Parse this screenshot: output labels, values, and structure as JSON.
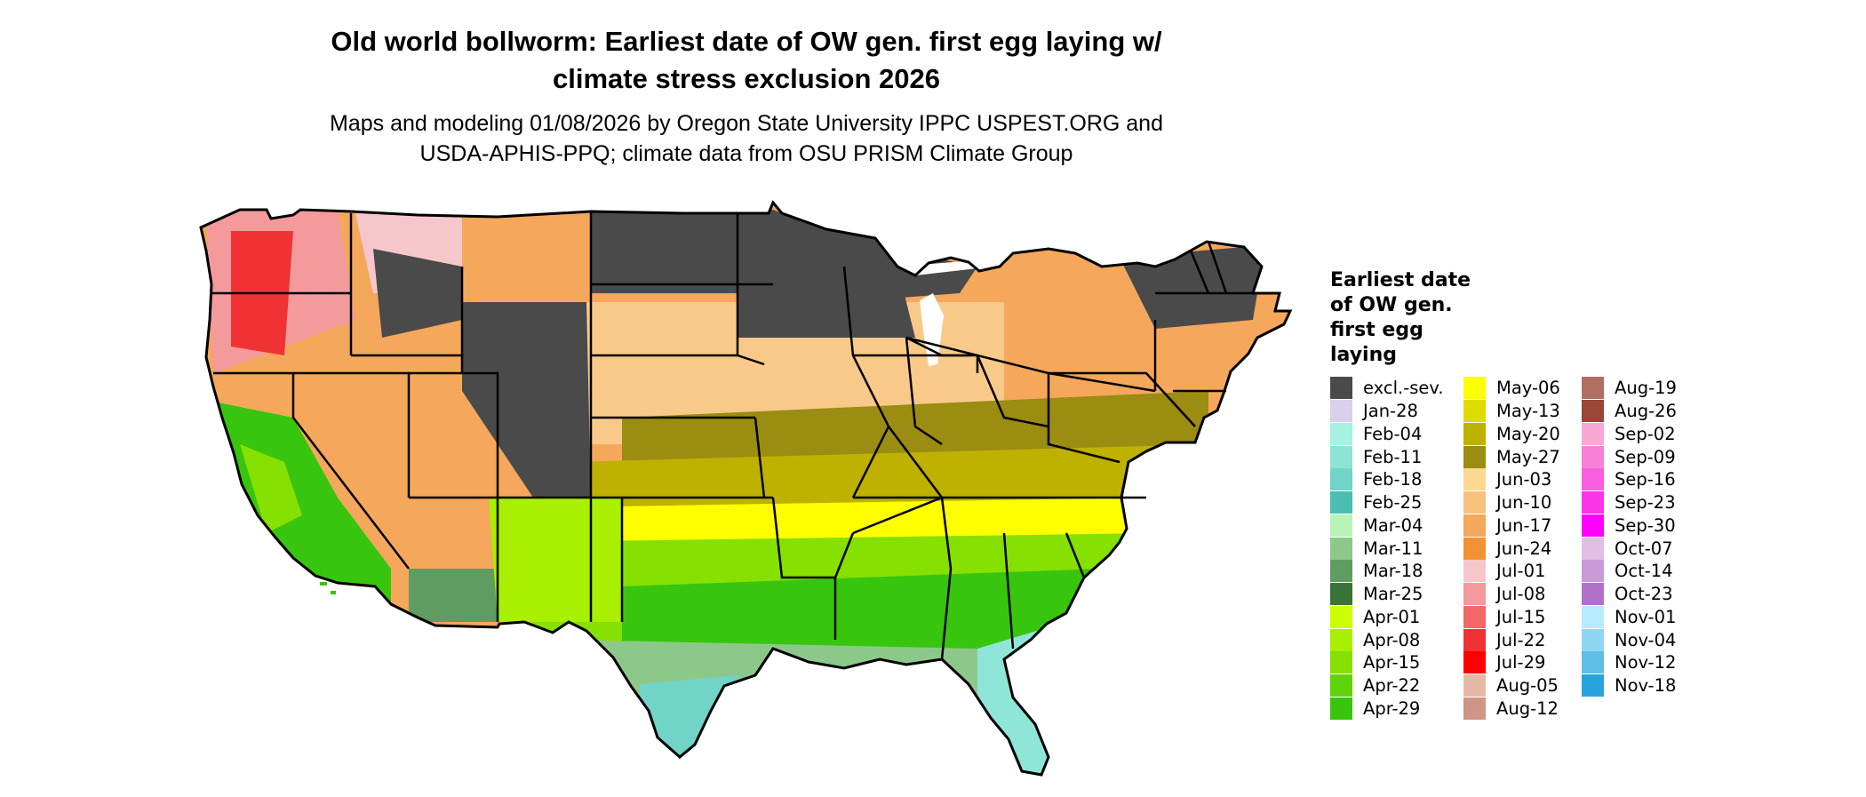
{
  "title": "Old world bollworm: Earliest date of OW gen. first egg laying w/ climate stress exclusion 2026",
  "title_lines": [
    "Old world bollworm: Earliest date of OW gen. first egg laying w/",
    "climate stress exclusion 2026"
  ],
  "subtitle_lines": [
    "Maps and modeling 01/08/2026 by Oregon State University IPPC USPEST.ORG and",
    "USDA-APHIS-PPQ; climate data from OSU PRISM Climate Group"
  ],
  "map": {
    "region": "Contiguous United States",
    "colors": {
      "excluded": "#4a4a4a",
      "border": "#000000",
      "feb_teal": "#8fe6d8",
      "mar_green": "#5a9c5a",
      "apr_green": "#7fd600",
      "may_yellow": "#ffff00",
      "may_olive": "#b5a800",
      "jun_peach": "#f9c98a",
      "jun_orange": "#f3a55a",
      "jul_red": "#f0363c",
      "jul_pink": "#f4a2a6"
    }
  },
  "legend": {
    "title_lines": [
      "Earliest date",
      "of OW gen.",
      "first egg",
      "laying"
    ],
    "columns": [
      [
        {
          "label": "excl.-sev.",
          "color": "#4a4a4a"
        },
        {
          "label": "Jan-28",
          "color": "#d8d0ec"
        },
        {
          "label": "Feb-04",
          "color": "#a6f2e3"
        },
        {
          "label": "Feb-11",
          "color": "#8ee3d4"
        },
        {
          "label": "Feb-18",
          "color": "#72d4c6"
        },
        {
          "label": "Feb-25",
          "color": "#4cbdb3"
        },
        {
          "label": "Mar-04",
          "color": "#b9f4b7"
        },
        {
          "label": "Mar-11",
          "color": "#8dc88b"
        },
        {
          "label": "Mar-18",
          "color": "#5e9c61"
        },
        {
          "label": "Mar-25",
          "color": "#3a7339"
        },
        {
          "label": "Apr-01",
          "color": "#ccff00"
        },
        {
          "label": "Apr-08",
          "color": "#a8f000"
        },
        {
          "label": "Apr-15",
          "color": "#86e000"
        },
        {
          "label": "Apr-22",
          "color": "#5fd40a"
        },
        {
          "label": "Apr-29",
          "color": "#38c50e"
        }
      ],
      [
        {
          "label": "May-06",
          "color": "#ffff00"
        },
        {
          "label": "May-13",
          "color": "#dedb00"
        },
        {
          "label": "May-20",
          "color": "#bfb100"
        },
        {
          "label": "May-27",
          "color": "#9b8c12"
        },
        {
          "label": "Jun-03",
          "color": "#fcd894"
        },
        {
          "label": "Jun-10",
          "color": "#f9c17e"
        },
        {
          "label": "Jun-17",
          "color": "#f5a75c"
        },
        {
          "label": "Jun-24",
          "color": "#f39235"
        },
        {
          "label": "Jul-01",
          "color": "#f6c7ca"
        },
        {
          "label": "Jul-08",
          "color": "#f49a9d"
        },
        {
          "label": "Jul-15",
          "color": "#f36769"
        },
        {
          "label": "Jul-22",
          "color": "#f13235"
        },
        {
          "label": "Jul-29",
          "color": "#ff0000"
        },
        {
          "label": "Aug-05",
          "color": "#e6b9a6"
        },
        {
          "label": "Aug-12",
          "color": "#cf9587"
        }
      ],
      [
        {
          "label": "Aug-19",
          "color": "#b36e62"
        },
        {
          "label": "Aug-26",
          "color": "#9a4535"
        },
        {
          "label": "Sep-02",
          "color": "#f9a7d3"
        },
        {
          "label": "Sep-09",
          "color": "#f881d8"
        },
        {
          "label": "Sep-16",
          "color": "#f95de0"
        },
        {
          "label": "Sep-23",
          "color": "#fb34e8"
        },
        {
          "label": "Sep-30",
          "color": "#ff00ff"
        },
        {
          "label": "Oct-07",
          "color": "#e2bde6"
        },
        {
          "label": "Oct-14",
          "color": "#ca99d8"
        },
        {
          "label": "Oct-23",
          "color": "#b171c9"
        },
        {
          "label": "Nov-01",
          "color": "#b5ecfd"
        },
        {
          "label": "Nov-04",
          "color": "#8ed6f2"
        },
        {
          "label": "Nov-12",
          "color": "#5ebee8"
        },
        {
          "label": "Nov-18",
          "color": "#29a3de"
        }
      ]
    ]
  }
}
